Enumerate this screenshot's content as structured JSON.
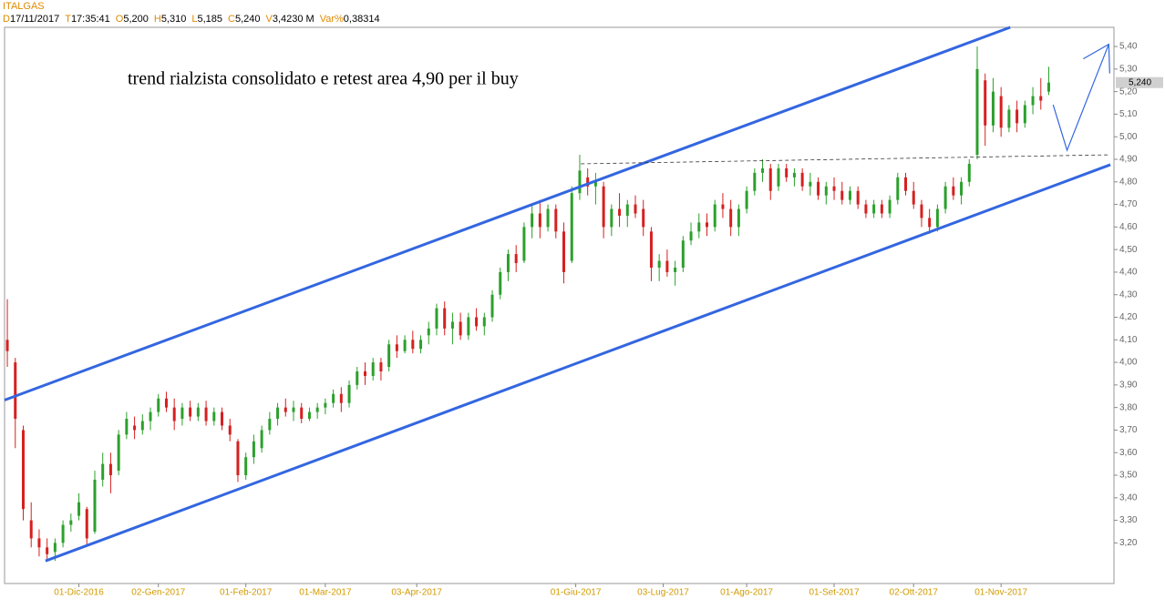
{
  "chart_data": {
    "type": "candlestick",
    "title": "ITALGAS",
    "header_fields": [
      {
        "key": "D",
        "value": "17/11/2017"
      },
      {
        "key": "T",
        "value": "17:35:41"
      },
      {
        "key": "O",
        "value": "5,200"
      },
      {
        "key": "H",
        "value": "5,310"
      },
      {
        "key": "L",
        "value": "5,185"
      },
      {
        "key": "C",
        "value": "5,240"
      },
      {
        "key": "V",
        "value": "3,4230 M"
      },
      {
        "key": "Var%",
        "value": "0,38314"
      }
    ],
    "annotation": "trend rialzista consolidato e retest area 4,90 per il buy",
    "up_color": "#2ca02c",
    "down_color": "#d62020",
    "xlim": [
      -0.7,
      278.4
    ],
    "ylim": [
      3.02,
      5.485
    ],
    "xticks": [
      {
        "value": 18,
        "label": "01-Dic-2016"
      },
      {
        "value": 38,
        "label": "02-Gen-2017"
      },
      {
        "value": 60,
        "label": "01-Feb-2017"
      },
      {
        "value": 80,
        "label": "01-Mar-2017"
      },
      {
        "value": 103,
        "label": "03-Apr-2017"
      },
      {
        "value": 143,
        "label": "01-Giu-2017"
      },
      {
        "value": 165,
        "label": "03-Lug-2017"
      },
      {
        "value": 186,
        "label": "01-Ago-2017"
      },
      {
        "value": 208,
        "label": "01-Set-2017"
      },
      {
        "value": 228,
        "label": "02-Ott-2017"
      },
      {
        "value": 250,
        "label": "01-Nov-2017"
      }
    ],
    "yticks": [
      {
        "value": 3.2,
        "label": "3,20"
      },
      {
        "value": 3.3,
        "label": "3,30"
      },
      {
        "value": 3.4,
        "label": "3,40"
      },
      {
        "value": 3.5,
        "label": "3,50"
      },
      {
        "value": 3.6,
        "label": "3,60"
      },
      {
        "value": 3.7,
        "label": "3,70"
      },
      {
        "value": 3.8,
        "label": "3,80"
      },
      {
        "value": 3.9,
        "label": "3,90"
      },
      {
        "value": 4.0,
        "label": "4,00"
      },
      {
        "value": 4.1,
        "label": "4,10"
      },
      {
        "value": 4.2,
        "label": "4,20"
      },
      {
        "value": 4.3,
        "label": "4,30"
      },
      {
        "value": 4.4,
        "label": "4,40"
      },
      {
        "value": 4.5,
        "label": "4,50"
      },
      {
        "value": 4.6,
        "label": "4,60"
      },
      {
        "value": 4.7,
        "label": "4,70"
      },
      {
        "value": 4.8,
        "label": "4,80"
      },
      {
        "value": 4.9,
        "label": "4,90"
      },
      {
        "value": 5.0,
        "label": "5,00"
      },
      {
        "value": 5.1,
        "label": "5,10"
      },
      {
        "value": 5.2,
        "label": "5,20"
      },
      {
        "value": 5.3,
        "label": "5,30"
      },
      {
        "value": 5.4,
        "label": "5,40"
      }
    ],
    "last_price": {
      "value": 5.24,
      "label": "5,240"
    },
    "x": [
      0,
      2,
      4,
      6,
      8,
      10,
      12,
      14,
      16,
      18,
      20,
      22,
      24,
      26,
      28,
      30,
      32,
      34,
      36,
      38,
      40,
      42,
      44,
      46,
      48,
      50,
      52,
      54,
      56,
      58,
      60,
      62,
      64,
      66,
      68,
      70,
      72,
      74,
      76,
      78,
      80,
      82,
      84,
      86,
      88,
      90,
      92,
      94,
      96,
      98,
      100,
      102,
      104,
      106,
      108,
      110,
      112,
      114,
      116,
      118,
      120,
      122,
      124,
      126,
      128,
      130,
      132,
      134,
      136,
      138,
      140,
      142,
      144,
      146,
      148,
      150,
      152,
      154,
      156,
      158,
      160,
      162,
      164,
      166,
      168,
      170,
      172,
      174,
      176,
      178,
      180,
      182,
      184,
      186,
      188,
      190,
      192,
      194,
      196,
      198,
      200,
      202,
      204,
      206,
      208,
      210,
      212,
      214,
      216,
      218,
      220,
      222,
      224,
      226,
      228,
      230,
      232,
      234,
      236,
      238,
      240,
      242,
      244,
      246,
      248,
      250,
      252,
      254,
      256,
      258,
      260,
      262
    ],
    "open": [
      4.1,
      4.0,
      3.7,
      3.3,
      3.22,
      3.18,
      3.16,
      3.2,
      3.28,
      3.32,
      3.35,
      3.25,
      3.48,
      3.55,
      3.52,
      3.68,
      3.72,
      3.7,
      3.74,
      3.78,
      3.84,
      3.8,
      3.75,
      3.8,
      3.76,
      3.8,
      3.74,
      3.78,
      3.72,
      3.65,
      3.5,
      3.58,
      3.62,
      3.7,
      3.75,
      3.8,
      3.78,
      3.8,
      3.75,
      3.78,
      3.8,
      3.82,
      3.86,
      3.82,
      3.9,
      3.96,
      3.94,
      4.0,
      3.98,
      4.08,
      4.05,
      4.1,
      4.06,
      4.12,
      4.15,
      4.24,
      4.15,
      4.18,
      4.12,
      4.2,
      4.16,
      4.2,
      4.3,
      4.4,
      4.48,
      4.45,
      4.6,
      4.66,
      4.6,
      4.68,
      4.58,
      4.45,
      4.75,
      4.82,
      4.78,
      4.78,
      4.6,
      4.68,
      4.65,
      4.7,
      4.68,
      4.58,
      4.42,
      4.45,
      4.4,
      4.42,
      4.54,
      4.58,
      4.62,
      4.6,
      4.7,
      4.68,
      4.6,
      4.68,
      4.76,
      4.84,
      4.86,
      4.78,
      4.86,
      4.82,
      4.84,
      4.78,
      4.8,
      4.74,
      4.78,
      4.76,
      4.72,
      4.76,
      4.7,
      4.66,
      4.7,
      4.66,
      4.72,
      4.82,
      4.76,
      4.7,
      4.64,
      4.6,
      4.68,
      4.78,
      4.74,
      4.8,
      4.92,
      5.25,
      5.05,
      5.18,
      5.04,
      5.12,
      5.06,
      5.14,
      5.18,
      5.2
    ],
    "high": [
      4.28,
      4.02,
      3.72,
      3.38,
      3.26,
      3.22,
      3.22,
      3.3,
      3.33,
      3.42,
      3.36,
      3.52,
      3.6,
      3.6,
      3.7,
      3.78,
      3.76,
      3.77,
      3.8,
      3.86,
      3.87,
      3.84,
      3.82,
      3.83,
      3.82,
      3.83,
      3.8,
      3.8,
      3.75,
      3.66,
      3.6,
      3.68,
      3.72,
      3.78,
      3.82,
      3.84,
      3.83,
      3.82,
      3.8,
      3.82,
      3.84,
      3.88,
      3.89,
      3.92,
      3.98,
      4.0,
      4.02,
      4.02,
      4.1,
      4.12,
      4.12,
      4.14,
      4.12,
      4.18,
      4.26,
      4.27,
      4.22,
      4.22,
      4.22,
      4.24,
      4.22,
      4.32,
      4.42,
      4.5,
      4.52,
      4.62,
      4.7,
      4.72,
      4.7,
      4.7,
      4.62,
      4.78,
      4.92,
      4.86,
      4.84,
      4.8,
      4.7,
      4.75,
      4.72,
      4.74,
      4.72,
      4.6,
      4.48,
      4.5,
      4.45,
      4.56,
      4.62,
      4.66,
      4.66,
      4.72,
      4.75,
      4.72,
      4.7,
      4.78,
      4.86,
      4.9,
      4.88,
      4.88,
      4.88,
      4.86,
      4.86,
      4.84,
      4.82,
      4.8,
      4.82,
      4.8,
      4.78,
      4.78,
      4.72,
      4.72,
      4.72,
      4.74,
      4.84,
      4.84,
      4.8,
      4.72,
      4.68,
      4.7,
      4.8,
      4.82,
      4.82,
      4.9,
      5.4,
      5.28,
      5.26,
      5.22,
      5.14,
      5.16,
      5.16,
      5.22,
      5.26,
      5.31
    ],
    "low": [
      3.98,
      3.62,
      3.3,
      3.18,
      3.14,
      3.12,
      3.12,
      3.18,
      3.25,
      3.3,
      3.19,
      3.24,
      3.45,
      3.42,
      3.5,
      3.66,
      3.66,
      3.68,
      3.7,
      3.76,
      3.78,
      3.7,
      3.72,
      3.74,
      3.74,
      3.72,
      3.72,
      3.7,
      3.65,
      3.47,
      3.48,
      3.55,
      3.6,
      3.68,
      3.72,
      3.76,
      3.74,
      3.73,
      3.74,
      3.75,
      3.77,
      3.8,
      3.78,
      3.8,
      3.88,
      3.9,
      3.92,
      3.92,
      3.96,
      4.02,
      4.04,
      4.04,
      4.04,
      4.08,
      4.12,
      4.12,
      4.08,
      4.1,
      4.1,
      4.14,
      4.12,
      4.18,
      4.28,
      4.36,
      4.4,
      4.44,
      4.55,
      4.55,
      4.58,
      4.55,
      4.35,
      4.44,
      4.72,
      4.74,
      4.7,
      4.55,
      4.56,
      4.6,
      4.6,
      4.64,
      4.56,
      4.36,
      4.36,
      4.38,
      4.34,
      4.4,
      4.52,
      4.55,
      4.56,
      4.58,
      4.64,
      4.56,
      4.56,
      4.66,
      4.74,
      4.8,
      4.72,
      4.76,
      4.8,
      4.78,
      4.76,
      4.74,
      4.72,
      4.7,
      4.72,
      4.7,
      4.7,
      4.68,
      4.64,
      4.64,
      4.64,
      4.64,
      4.7,
      4.74,
      4.68,
      4.6,
      4.57,
      4.58,
      4.66,
      4.72,
      4.7,
      4.78,
      4.9,
      4.96,
      5.02,
      5.0,
      5.02,
      5.02,
      5.04,
      5.1,
      5.12,
      5.185
    ],
    "close": [
      4.05,
      3.75,
      3.35,
      3.22,
      3.18,
      3.15,
      3.2,
      3.28,
      3.3,
      3.38,
      3.22,
      3.48,
      3.55,
      3.5,
      3.68,
      3.75,
      3.7,
      3.74,
      3.78,
      3.84,
      3.8,
      3.74,
      3.8,
      3.76,
      3.8,
      3.74,
      3.78,
      3.72,
      3.68,
      3.5,
      3.58,
      3.65,
      3.7,
      3.75,
      3.8,
      3.78,
      3.8,
      3.75,
      3.78,
      3.8,
      3.82,
      3.86,
      3.82,
      3.9,
      3.96,
      3.94,
      4.0,
      3.96,
      4.08,
      4.05,
      4.1,
      4.06,
      4.1,
      4.15,
      4.24,
      4.15,
      4.18,
      4.12,
      4.2,
      4.16,
      4.2,
      4.3,
      4.4,
      4.48,
      4.44,
      4.6,
      4.66,
      4.6,
      4.68,
      4.58,
      4.4,
      4.75,
      4.85,
      4.78,
      4.8,
      4.6,
      4.68,
      4.65,
      4.7,
      4.66,
      4.6,
      4.42,
      4.45,
      4.4,
      4.42,
      4.54,
      4.58,
      4.62,
      4.6,
      4.7,
      4.68,
      4.6,
      4.68,
      4.76,
      4.84,
      4.86,
      4.76,
      4.86,
      4.82,
      4.84,
      4.78,
      4.8,
      4.74,
      4.78,
      4.76,
      4.72,
      4.76,
      4.7,
      4.66,
      4.7,
      4.66,
      4.72,
      4.82,
      4.76,
      4.7,
      4.64,
      4.6,
      4.68,
      4.78,
      4.74,
      4.8,
      4.88,
      5.3,
      5.05,
      5.2,
      5.04,
      5.12,
      5.06,
      5.14,
      5.18,
      5.16,
      5.24
    ],
    "drawings": [
      {
        "style": "solid",
        "color": "#3366e0",
        "x": [
          -0.7,
          252.3
        ],
        "y": [
          3.833,
          5.485
        ]
      },
      {
        "style": "solid",
        "color": "#3366e0",
        "x": [
          9.6,
          277.5
        ],
        "y": [
          3.12,
          4.876
        ]
      },
      {
        "style": "dashed",
        "color": "#333333",
        "x": [
          144.3,
          277.5
        ],
        "y": [
          4.88,
          4.92
        ]
      },
      {
        "style": "thin",
        "color": "#3366e0",
        "x": [
          263.1,
          266.6,
          277.1
        ],
        "y": [
          5.142,
          4.94,
          5.41
        ]
      }
    ]
  }
}
